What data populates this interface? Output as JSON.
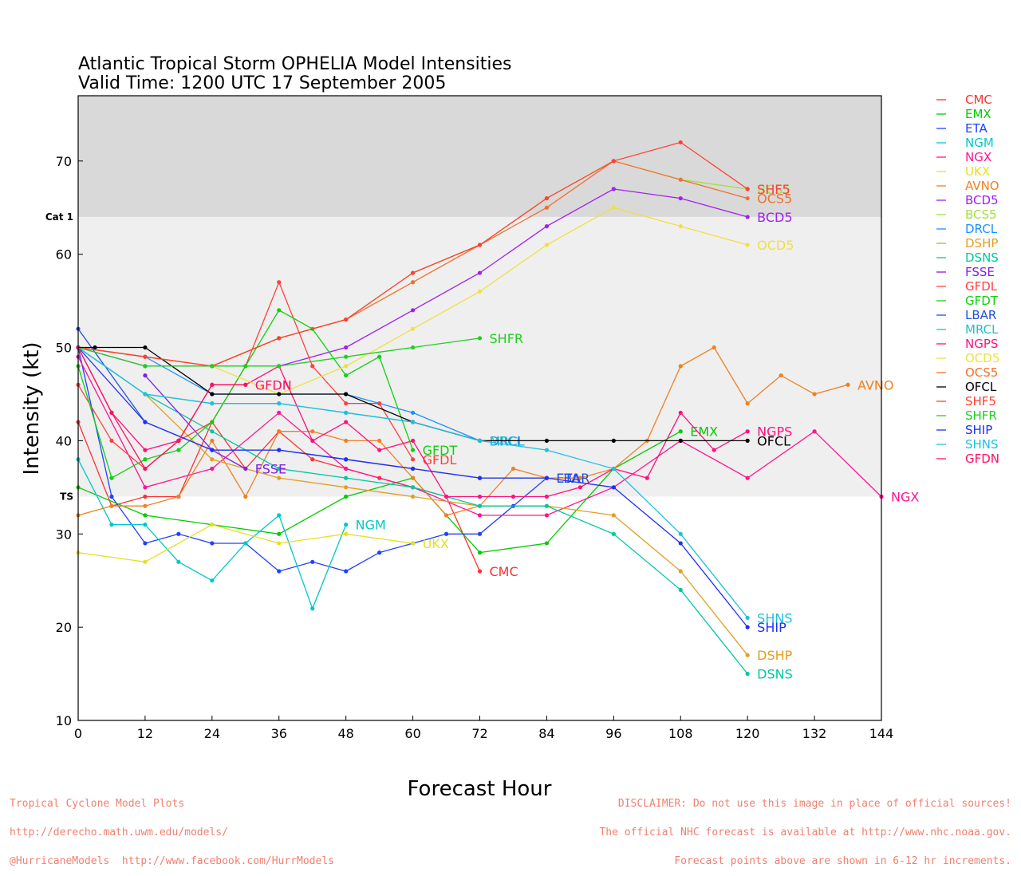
{
  "title_line1": "Atlantic Tropical Storm OPHELIA Model Intensities",
  "title_line2": "Valid Time: 1200 UTC 17 September 2005",
  "footer_left": [
    "Tropical Cyclone Model Plots",
    "http://derecho.math.uwm.edu/models/",
    "@HurricaneModels  http://www.facebook.com/HurrModels"
  ],
  "footer_right": [
    "DISCLAIMER: Do not use this image in place of official sources!",
    "The official NHC forecast is available at http://www.nhc.noaa.gov.",
    "Forecast points above are shown in 6-12 hr increments."
  ],
  "chart_data": {
    "type": "line",
    "title": "Atlantic Tropical Storm OPHELIA Model Intensities",
    "subtitle": "Valid Time: 1200 UTC 17 September 2005",
    "xlabel": "Forecast Hour",
    "ylabel": "Intensity (kt)",
    "xlim": [
      0,
      144
    ],
    "ylim": [
      10,
      77
    ],
    "xticks": [
      0,
      12,
      24,
      36,
      48,
      60,
      72,
      84,
      96,
      108,
      120,
      132,
      144
    ],
    "yticks": [
      10,
      20,
      30,
      40,
      50,
      60,
      70
    ],
    "bands": [
      {
        "label": "TS",
        "from": 34,
        "to": 64,
        "color": "#efefef"
      },
      {
        "label": "Cat 1",
        "from": 64,
        "to": 77,
        "color": "#d9d9d9"
      }
    ],
    "grid": false,
    "legend_position": "right",
    "series": [
      {
        "name": "CMC",
        "color": "#ff3030",
        "x": [
          0,
          6,
          12,
          18,
          24,
          30,
          36,
          42,
          48,
          54,
          60,
          66,
          72
        ],
        "y": [
          42,
          33,
          34,
          34,
          42,
          37,
          41,
          38,
          37,
          36,
          35,
          34,
          26
        ]
      },
      {
        "name": "EMX",
        "color": "#00cc00",
        "x": [
          0,
          12,
          24,
          36,
          48,
          60,
          72,
          84,
          96,
          108
        ],
        "y": [
          35,
          32,
          31,
          30,
          34,
          36,
          28,
          29,
          37,
          41
        ]
      },
      {
        "name": "ETA",
        "color": "#2040ff",
        "x": [
          0,
          6,
          12,
          18,
          24,
          30,
          36,
          42,
          48,
          54,
          60,
          66,
          72,
          78,
          84
        ],
        "y": [
          50,
          34,
          29,
          30,
          29,
          29,
          26,
          27,
          26,
          28,
          29,
          30,
          30,
          33,
          36
        ]
      },
      {
        "name": "NGM",
        "color": "#00c8c8",
        "x": [
          0,
          6,
          12,
          18,
          24,
          30,
          36,
          42,
          48
        ],
        "y": [
          38,
          31,
          31,
          27,
          25,
          29,
          32,
          22,
          31
        ]
      },
      {
        "name": "NGX",
        "color": "#ff1493",
        "x": [
          0,
          12,
          24,
          36,
          48,
          60,
          72,
          84,
          96,
          108,
          120,
          132,
          144
        ],
        "y": [
          49,
          35,
          37,
          43,
          37,
          35,
          32,
          32,
          35,
          40,
          36,
          41,
          34
        ]
      },
      {
        "name": "UKX",
        "color": "#e6e020",
        "x": [
          0,
          12,
          24,
          36,
          48,
          60
        ],
        "y": [
          28,
          27,
          31,
          29,
          30,
          29
        ]
      },
      {
        "name": "AVNO",
        "color": "#f08020",
        "x": [
          0,
          6,
          12,
          18,
          24,
          30,
          36,
          42,
          48,
          54,
          60,
          66,
          72,
          78,
          84,
          90,
          96,
          102,
          108,
          114,
          120,
          126,
          132,
          138
        ],
        "y": [
          32,
          33,
          33,
          34,
          40,
          34,
          41,
          41,
          40,
          40,
          36,
          32,
          33,
          37,
          36,
          36,
          37,
          40,
          48,
          50,
          44,
          47,
          45,
          46
        ]
      },
      {
        "name": "BCD5",
        "color": "#a020f0",
        "x": [
          0,
          12,
          24,
          36,
          48,
          60,
          72,
          84,
          96,
          108,
          120
        ],
        "y": [
          50,
          48,
          48,
          48,
          50,
          54,
          58,
          63,
          67,
          66,
          64
        ]
      },
      {
        "name": "BCS5",
        "color": "#a0e040",
        "x": [
          0,
          12,
          24,
          36,
          48,
          60,
          72,
          84,
          96,
          108,
          120
        ],
        "y": [
          50,
          49,
          48,
          51,
          53,
          58,
          61,
          66,
          70,
          68,
          67
        ]
      },
      {
        "name": "DRCL",
        "color": "#1e90ff",
        "x": [
          0,
          12,
          24,
          36,
          48,
          60,
          72
        ],
        "y": [
          50,
          49,
          45,
          45,
          45,
          43,
          40
        ]
      },
      {
        "name": "DSHP",
        "color": "#e0a020",
        "x": [
          0,
          12,
          24,
          36,
          48,
          60,
          72,
          84,
          96,
          108,
          120
        ],
        "y": [
          50,
          45,
          38,
          36,
          35,
          34,
          33,
          33,
          32,
          26,
          17
        ]
      },
      {
        "name": "DSNS",
        "color": "#00c8a0",
        "x": [
          0,
          12,
          24,
          36,
          48,
          60,
          72,
          84,
          96,
          108,
          120
        ],
        "y": [
          50,
          45,
          41,
          37,
          36,
          35,
          33,
          33,
          30,
          24,
          15
        ]
      },
      {
        "name": "FSSE",
        "color": "#8020e0",
        "x": [
          12,
          24,
          30
        ],
        "y": [
          47,
          39,
          37
        ]
      },
      {
        "name": "GFDL",
        "color": "#ff4040",
        "x": [
          0,
          6,
          12,
          18,
          24,
          30,
          36,
          42,
          48,
          54,
          60
        ],
        "y": [
          46,
          40,
          37,
          40,
          42,
          48,
          57,
          48,
          44,
          44,
          38
        ]
      },
      {
        "name": "GFDT",
        "color": "#10d010",
        "x": [
          0,
          6,
          12,
          18,
          24,
          30,
          36,
          42,
          48,
          54,
          60
        ],
        "y": [
          48,
          36,
          38,
          39,
          42,
          48,
          54,
          52,
          47,
          49,
          39
        ]
      },
      {
        "name": "LBAR",
        "color": "#2050e0",
        "x": [
          0,
          12,
          24,
          36,
          48,
          60,
          72,
          84
        ],
        "y": [
          52,
          42,
          39,
          39,
          38,
          37,
          36,
          36
        ]
      },
      {
        "name": "MRCL",
        "color": "#20c0d0",
        "x": [
          0,
          12,
          24,
          36,
          48,
          60,
          72
        ],
        "y": [
          50,
          45,
          44,
          44,
          43,
          42,
          40
        ]
      },
      {
        "name": "NGPS",
        "color": "#ff1080",
        "x": [
          0,
          6,
          12,
          18,
          24,
          30,
          36,
          42,
          48,
          54,
          60,
          66,
          72,
          78,
          84,
          90,
          96,
          102,
          108,
          114,
          120
        ],
        "y": [
          50,
          43,
          39,
          40,
          46,
          46,
          48,
          40,
          42,
          39,
          40,
          34,
          34,
          34,
          34,
          35,
          37,
          36,
          43,
          39,
          41
        ]
      },
      {
        "name": "OCD5",
        "color": "#f0e040",
        "x": [
          0,
          12,
          24,
          36,
          48,
          60,
          72,
          84,
          96,
          108,
          120
        ],
        "y": [
          50,
          49,
          48,
          45,
          48,
          52,
          56,
          61,
          65,
          63,
          61
        ]
      },
      {
        "name": "OCS5",
        "color": "#f07030",
        "x": [
          0,
          12,
          24,
          36,
          48,
          60,
          72,
          84,
          96,
          108,
          120
        ],
        "y": [
          50,
          49,
          48,
          51,
          53,
          57,
          61,
          65,
          70,
          68,
          66
        ]
      },
      {
        "name": "OFCL",
        "color": "#000000",
        "x": [
          0,
          3,
          12,
          24,
          36,
          48,
          60,
          72,
          84,
          96,
          108,
          120
        ],
        "y": [
          50,
          50,
          50,
          45,
          45,
          45,
          42,
          40,
          40,
          40,
          40,
          40
        ]
      },
      {
        "name": "SHF5",
        "color": "#ff4030",
        "x": [
          0,
          12,
          24,
          36,
          48,
          60,
          72,
          84,
          96,
          108,
          120
        ],
        "y": [
          50,
          49,
          48,
          51,
          53,
          58,
          61,
          66,
          70,
          72,
          67
        ]
      },
      {
        "name": "SHFR",
        "color": "#20d020",
        "x": [
          0,
          12,
          24,
          36,
          48,
          60,
          72
        ],
        "y": [
          50,
          48,
          48,
          48,
          49,
          50,
          51
        ]
      },
      {
        "name": "SHIP",
        "color": "#2030f0",
        "x": [
          0,
          12,
          24,
          36,
          48,
          60,
          72,
          84,
          96,
          108,
          120
        ],
        "y": [
          50,
          42,
          39,
          39,
          38,
          37,
          36,
          36,
          35,
          29,
          20
        ]
      },
      {
        "name": "SHNS",
        "color": "#20c0e0",
        "x": [
          0,
          12,
          24,
          36,
          48,
          60,
          72,
          84,
          96,
          108,
          120
        ],
        "y": [
          50,
          45,
          44,
          44,
          43,
          42,
          40,
          39,
          37,
          30,
          21
        ]
      },
      {
        "name": "GFDN",
        "color": "#ff1060",
        "x": [
          0,
          6,
          12,
          18,
          24,
          30
        ],
        "y": [
          50,
          43,
          37,
          40,
          46,
          46
        ]
      }
    ]
  }
}
